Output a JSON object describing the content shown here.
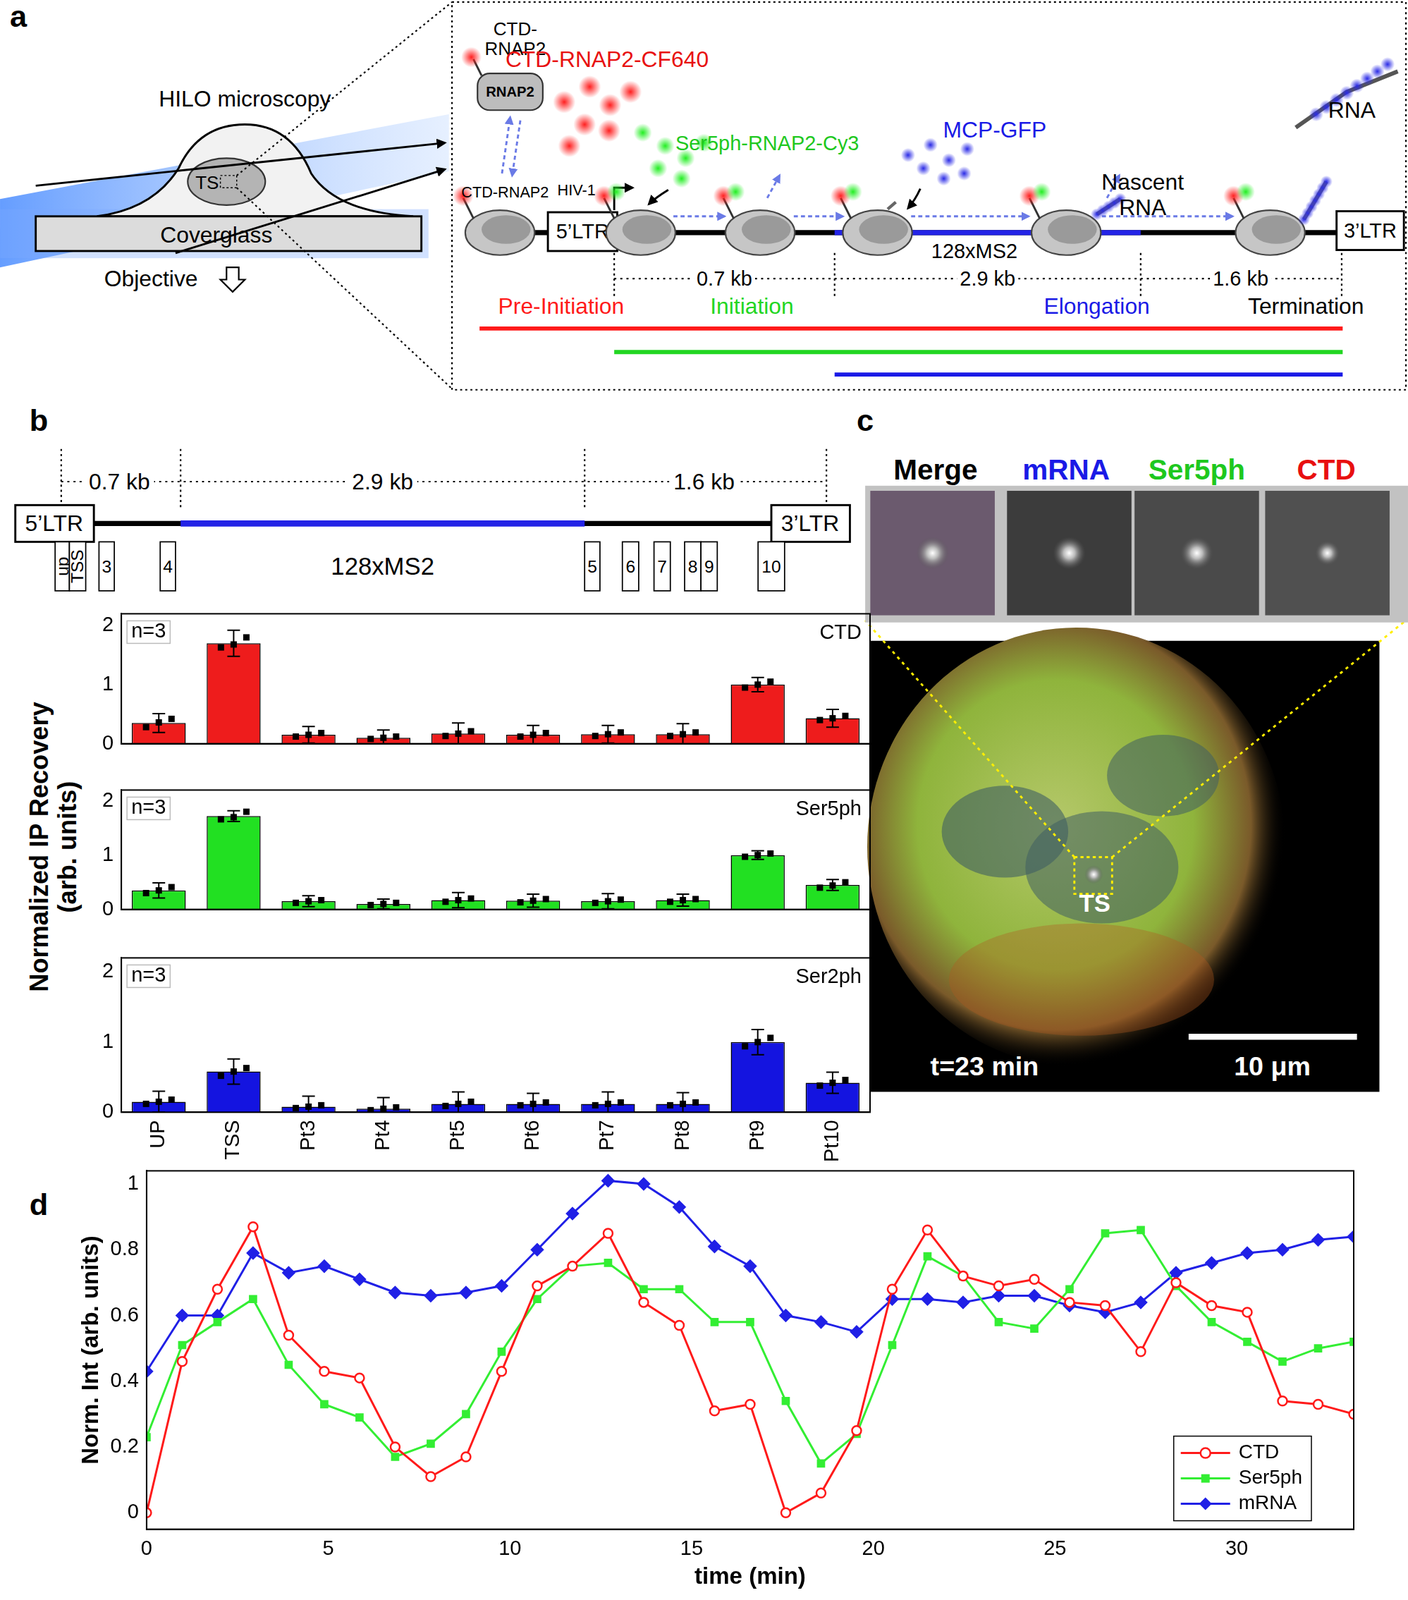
{
  "panel_labels": [
    "a",
    "b",
    "c",
    "d"
  ],
  "diagram": {
    "microscopy": "HILO microscopy",
    "ts": "TS",
    "coverglass": "Coverglass",
    "objective": "Objective",
    "free_rnap2": "CTD-RNAP2",
    "rnap2": "RNAP2",
    "bound_rnap2": "CTD-RNAP2",
    "ctd_probe": "CTD-RNAP2-CF640",
    "ser5_probe": "Ser5ph-RNAP2-Cy3",
    "mcp": "MCP-GFP",
    "rna": "RNA",
    "nascent_rna": [
      "Nascent",
      "RNA"
    ],
    "promoter": "HIV-1",
    "ltr5": "5’LTR",
    "ltr3": "3’LTR",
    "repeat": "128xMS2",
    "segments": [
      "0.7 kb",
      "2.9 kb",
      "1.6 kb"
    ],
    "stages": [
      "Pre-Initiation",
      "Initiation",
      "Elongation",
      "Termination"
    ]
  },
  "gene_map": {
    "segments": [
      "0.7 kb",
      "2.9 kb",
      "1.6 kb"
    ],
    "ltr5": "5’LTR",
    "ltr3": "3’LTR",
    "repeat": "128xMS2",
    "primers": [
      "up",
      "TSS",
      "3",
      "4",
      "5",
      "6",
      "7",
      "8",
      "9",
      "10"
    ]
  },
  "panel_b_ylabel": [
    "Normalized IP Recovery",
    "(arb. units)"
  ],
  "image_panel": {
    "channels": [
      "Merge",
      "mRNA",
      "Ser5ph",
      "CTD"
    ],
    "label": "TS",
    "time": "t=23 min",
    "scale_bar": "10 μm"
  },
  "chart_data": [
    {
      "type": "bar",
      "title": "CTD",
      "annotations": [
        "n=3"
      ],
      "categories": [
        "UP",
        "TSS",
        "Pt3",
        "Pt4",
        "Pt5",
        "Pt6",
        "Pt7",
        "Pt8",
        "Pt9",
        "Pt10"
      ],
      "values": [
        0.35,
        1.7,
        0.15,
        0.1,
        0.17,
        0.15,
        0.16,
        0.16,
        1.0,
        0.43
      ],
      "errors": [
        0.16,
        0.22,
        0.14,
        0.13,
        0.18,
        0.16,
        0.15,
        0.18,
        0.12,
        0.15
      ],
      "points": [
        [
          0.28,
          0.36,
          0.42
        ],
        [
          1.63,
          1.68,
          1.8
        ],
        [
          0.12,
          0.15,
          0.18
        ],
        [
          0.08,
          0.1,
          0.12
        ],
        [
          0.13,
          0.17,
          0.21
        ],
        [
          0.12,
          0.15,
          0.18
        ],
        [
          0.13,
          0.16,
          0.19
        ],
        [
          0.13,
          0.16,
          0.19
        ],
        [
          0.95,
          1.0,
          1.05
        ],
        [
          0.4,
          0.43,
          0.47
        ]
      ],
      "color": "#ee1c1c",
      "ylim": [
        0,
        2.2
      ],
      "yticks": [
        0,
        1,
        2
      ],
      "tick_labels": "y",
      "grid": false
    },
    {
      "type": "bar",
      "title": "Ser5ph",
      "annotations": [
        "n=3"
      ],
      "categories": [
        "UP",
        "TSS",
        "Pt3",
        "Pt4",
        "Pt5",
        "Pt6",
        "Pt7",
        "Pt8",
        "Pt9",
        "Pt10"
      ],
      "values": [
        0.35,
        1.72,
        0.15,
        0.1,
        0.17,
        0.16,
        0.15,
        0.17,
        1.0,
        0.45
      ],
      "errors": [
        0.14,
        0.1,
        0.1,
        0.09,
        0.14,
        0.12,
        0.14,
        0.11,
        0.08,
        0.1
      ],
      "points": [
        [
          0.3,
          0.35,
          0.41
        ],
        [
          1.66,
          1.7,
          1.8
        ],
        [
          0.12,
          0.15,
          0.17
        ],
        [
          0.08,
          0.1,
          0.12
        ],
        [
          0.14,
          0.17,
          0.2
        ],
        [
          0.13,
          0.16,
          0.19
        ],
        [
          0.12,
          0.15,
          0.18
        ],
        [
          0.14,
          0.17,
          0.19
        ],
        [
          0.97,
          1.0,
          1.03
        ],
        [
          0.4,
          0.44,
          0.5
        ]
      ],
      "color": "#22e022",
      "ylim": [
        0,
        2.2
      ],
      "yticks": [
        0,
        1,
        2
      ],
      "tick_labels": "y",
      "grid": false
    },
    {
      "type": "bar",
      "title": "Ser2ph",
      "annotations": [
        "n=3"
      ],
      "categories": [
        "UP",
        "TSS",
        "Pt3",
        "Pt4",
        "Pt5",
        "Pt6",
        "Pt7",
        "Pt8",
        "Pt9",
        "Pt10"
      ],
      "values": [
        0.15,
        0.58,
        0.08,
        0.05,
        0.12,
        0.12,
        0.12,
        0.12,
        1.0,
        0.42
      ],
      "errors": [
        0.15,
        0.18,
        0.15,
        0.16,
        0.17,
        0.15,
        0.17,
        0.16,
        0.18,
        0.15
      ],
      "points": [
        [
          0.12,
          0.15,
          0.18
        ],
        [
          0.52,
          0.58,
          0.63
        ],
        [
          0.06,
          0.08,
          0.1
        ],
        [
          0.03,
          0.05,
          0.07
        ],
        [
          0.09,
          0.12,
          0.15
        ],
        [
          0.1,
          0.12,
          0.14
        ],
        [
          0.1,
          0.12,
          0.14
        ],
        [
          0.1,
          0.12,
          0.14
        ],
        [
          0.94,
          1.0,
          1.06
        ],
        [
          0.38,
          0.42,
          0.46
        ]
      ],
      "color": "#1414e0",
      "ylim": [
        0,
        2.2
      ],
      "yticks": [
        0,
        1,
        2
      ],
      "grid": false
    },
    {
      "type": "line",
      "xlabel": "time (min)",
      "ylabel": "Norm. Int (arb. units)",
      "x": [
        0,
        0.98,
        1.95,
        2.93,
        3.91,
        4.89,
        5.86,
        6.84,
        7.82,
        8.79,
        9.77,
        10.75,
        11.72,
        12.7,
        13.68,
        14.66,
        15.63,
        16.61,
        17.59,
        18.56,
        19.54,
        20.52,
        21.49,
        22.47,
        23.45,
        24.43,
        25.4,
        26.38,
        27.36,
        28.33,
        29.31,
        30.29,
        31.26,
        32.24,
        33.22
      ],
      "series": [
        {
          "name": "CTD",
          "color": "#ff1a1a",
          "marker": "open_circle",
          "values": [
            0,
            0.46,
            0.68,
            0.87,
            0.54,
            0.43,
            0.41,
            0.2,
            0.11,
            0.17,
            0.43,
            0.69,
            0.75,
            0.85,
            0.64,
            0.57,
            0.31,
            0.33,
            0.0,
            0.06,
            0.25,
            0.68,
            0.86,
            0.72,
            0.69,
            0.71,
            0.64,
            0.63,
            0.49,
            0.7,
            0.63,
            0.61,
            0.34,
            0.33,
            0.3
          ]
        },
        {
          "name": "Ser5ph",
          "color": "#33ee33",
          "marker": "square",
          "values": [
            0.23,
            0.51,
            0.58,
            0.65,
            0.45,
            0.33,
            0.29,
            0.17,
            0.21,
            0.3,
            0.49,
            0.65,
            0.75,
            0.76,
            0.68,
            0.68,
            0.58,
            0.58,
            0.34,
            0.15,
            0.24,
            0.51,
            0.78,
            0.72,
            0.58,
            0.56,
            0.68,
            0.85,
            0.86,
            0.69,
            0.58,
            0.52,
            0.46,
            0.5,
            0.52
          ]
        },
        {
          "name": "mRNA",
          "color": "#2020e6",
          "marker": "diamond",
          "values": [
            0.43,
            0.6,
            0.6,
            0.79,
            0.73,
            0.75,
            0.71,
            0.67,
            0.66,
            0.67,
            0.69,
            0.8,
            0.91,
            1.01,
            1.0,
            0.93,
            0.81,
            0.75,
            0.6,
            0.58,
            0.55,
            0.65,
            0.65,
            0.64,
            0.66,
            0.66,
            0.63,
            0.61,
            0.64,
            0.73,
            0.76,
            0.79,
            0.8,
            0.83,
            0.84
          ]
        }
      ],
      "xlim": [
        0,
        33.22
      ],
      "xticks": [
        0,
        5,
        10,
        15,
        20,
        25,
        30
      ],
      "ylim": [
        -0.05,
        1.04
      ],
      "yticks": [
        0,
        0.2,
        0.4,
        0.6,
        0.8,
        1
      ],
      "legend": "lower right",
      "grid": false
    }
  ]
}
